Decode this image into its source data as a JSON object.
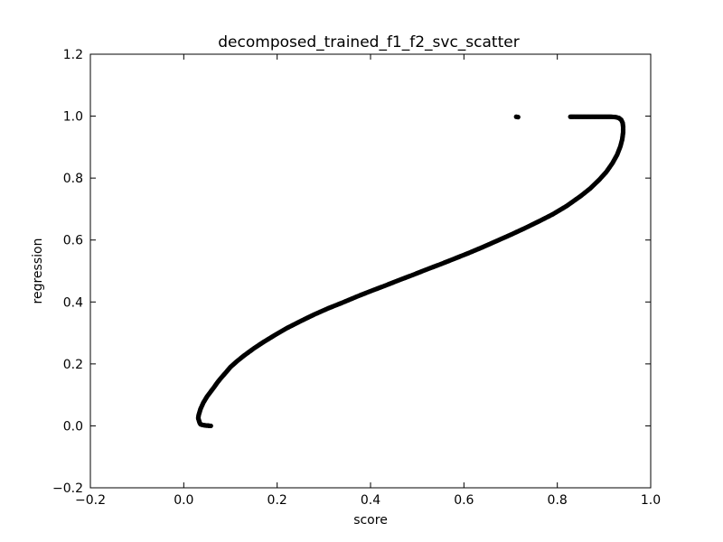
{
  "chart_data": {
    "type": "scatter",
    "title": "decomposed_trained_f1_f2_svc_scatter",
    "xlabel": "score",
    "ylabel": "regression",
    "xlim": [
      -0.2,
      1.0
    ],
    "ylim": [
      -0.2,
      1.2
    ],
    "xticks": [
      "−0.2",
      "0.0",
      "0.2",
      "0.4",
      "0.6",
      "0.8",
      "1.0"
    ],
    "yticks": [
      "−0.2",
      "0.0",
      "0.2",
      "0.4",
      "0.6",
      "0.8",
      "1.0",
      "1.2"
    ],
    "xtick_values": [
      -0.2,
      0.0,
      0.2,
      0.4,
      0.6,
      0.8,
      1.0
    ],
    "ytick_values": [
      -0.2,
      0.0,
      0.2,
      0.4,
      0.6,
      0.8,
      1.0,
      1.2
    ],
    "grid": false,
    "marker_color": "#000000",
    "series": [
      {
        "x": [
          0.058,
          0.055,
          0.052,
          0.048,
          0.044,
          0.04,
          0.036,
          0.034,
          0.033,
          0.032,
          0.031,
          0.032,
          0.034,
          0.036,
          0.039,
          0.042,
          0.046,
          0.05,
          0.055,
          0.06,
          0.065,
          0.072,
          0.08,
          0.09,
          0.1,
          0.115,
          0.13,
          0.15,
          0.17,
          0.195,
          0.22,
          0.25,
          0.28,
          0.31,
          0.34,
          0.37,
          0.4,
          0.43,
          0.46,
          0.49,
          0.52,
          0.55,
          0.58,
          0.61,
          0.64,
          0.67,
          0.7,
          0.73,
          0.76,
          0.79,
          0.82,
          0.85,
          0.87,
          0.89,
          0.905,
          0.918,
          0.928,
          0.935,
          0.939,
          0.941,
          0.941,
          0.94,
          0.937,
          0.932,
          0.925,
          0.915,
          0.905,
          0.895,
          0.885,
          0.875,
          0.865,
          0.855,
          0.845,
          0.835,
          0.828,
          0.716,
          0.712
        ],
        "y": [
          0.0,
          0.0,
          0.001,
          0.001,
          0.002,
          0.003,
          0.005,
          0.01,
          0.015,
          0.02,
          0.025,
          0.035,
          0.045,
          0.055,
          0.065,
          0.075,
          0.085,
          0.095,
          0.105,
          0.115,
          0.125,
          0.14,
          0.155,
          0.172,
          0.19,
          0.21,
          0.228,
          0.25,
          0.27,
          0.293,
          0.315,
          0.338,
          0.36,
          0.38,
          0.398,
          0.417,
          0.435,
          0.452,
          0.47,
          0.487,
          0.505,
          0.522,
          0.54,
          0.558,
          0.577,
          0.597,
          0.617,
          0.638,
          0.66,
          0.683,
          0.71,
          0.742,
          0.766,
          0.795,
          0.82,
          0.848,
          0.875,
          0.902,
          0.925,
          0.948,
          0.965,
          0.978,
          0.988,
          0.994,
          0.997,
          0.998,
          0.998,
          0.998,
          0.998,
          0.998,
          0.998,
          0.998,
          0.998,
          0.998,
          0.998,
          0.997,
          0.998
        ]
      }
    ]
  }
}
